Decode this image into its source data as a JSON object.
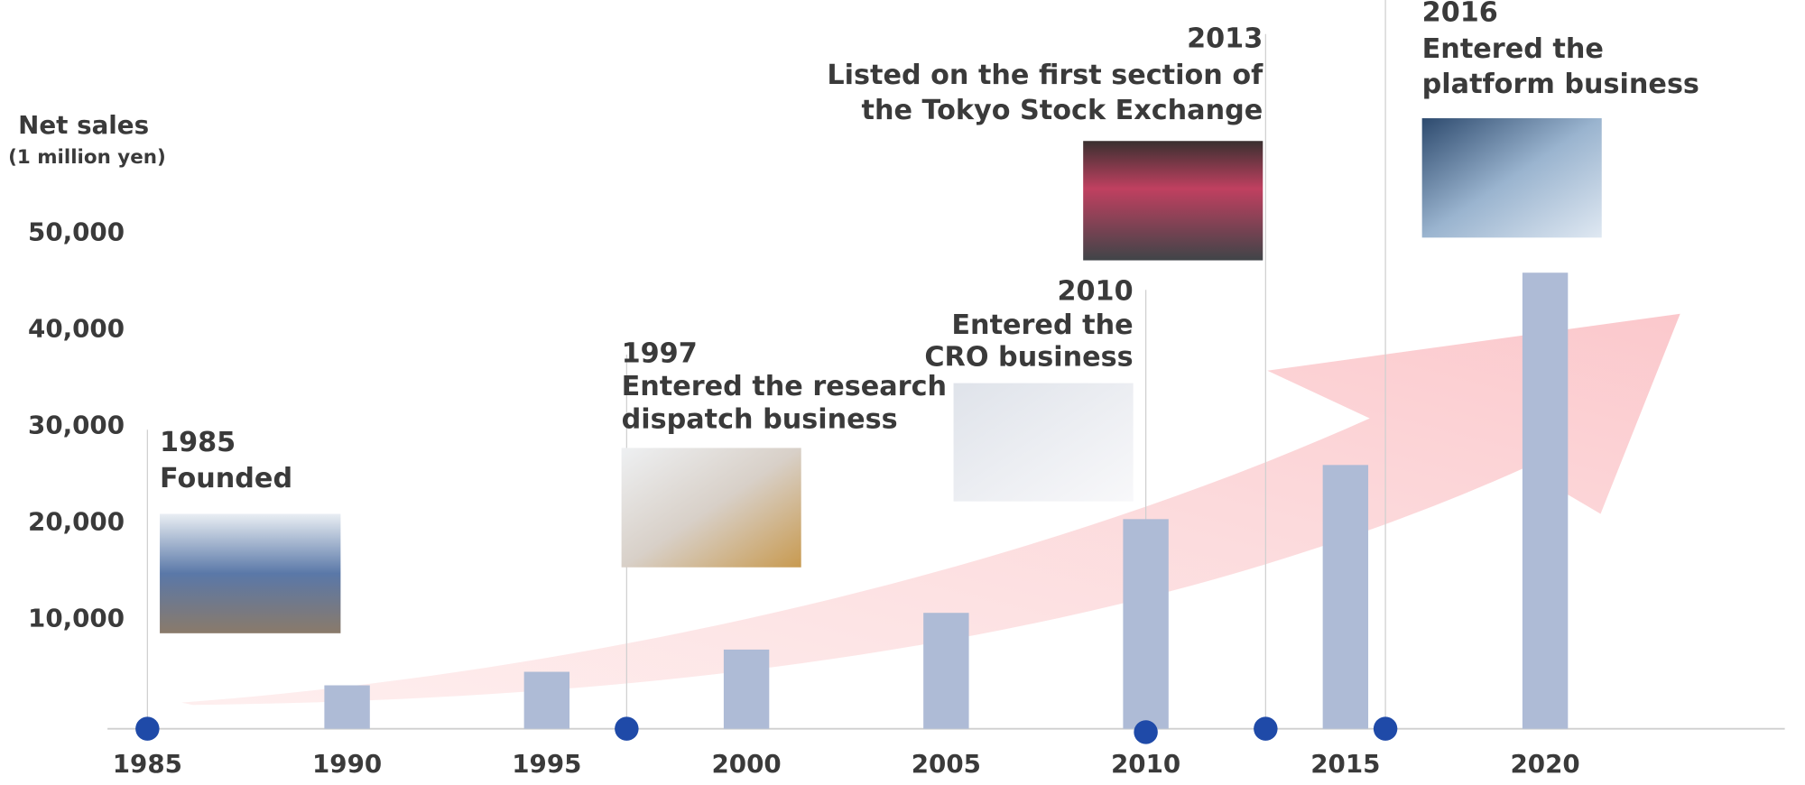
{
  "chart_data": {
    "type": "bar",
    "y_axis_label": "Net sales",
    "y_axis_unit": "(1 million yen)",
    "x": [
      1990,
      1995,
      2000,
      2005,
      2010,
      2015,
      2020
    ],
    "values": [
      3200,
      4600,
      6900,
      10700,
      20400,
      26000,
      45900
    ],
    "color": "#aebbd6",
    "xlim": [
      1984,
      2026
    ],
    "xticks": [
      1985,
      1990,
      1995,
      2000,
      2005,
      2010,
      2015,
      2020
    ],
    "ylim": [
      0,
      55000
    ],
    "yticks": [
      {
        "value": 10000,
        "label": "10,000"
      },
      {
        "value": 20000,
        "label": "20,000"
      },
      {
        "value": 30000,
        "label": "30,000"
      },
      {
        "value": 40000,
        "label": "40,000"
      },
      {
        "value": 50000,
        "label": "50,000"
      }
    ],
    "events": [
      {
        "year": 1985,
        "lines": [
          "Founded"
        ]
      },
      {
        "year": 1997,
        "lines": [
          "Entered the research",
          "dispatch business"
        ]
      },
      {
        "year": 2010,
        "lines": [
          "Entered the",
          "CRO business"
        ]
      },
      {
        "year": 2013,
        "lines": [
          "Listed on the first section of",
          "the Tokyo Stock Exchange"
        ]
      },
      {
        "year": 2016,
        "lines": [
          "Entered the",
          "platform business"
        ]
      }
    ],
    "marker_color": "#1f4aa8"
  }
}
